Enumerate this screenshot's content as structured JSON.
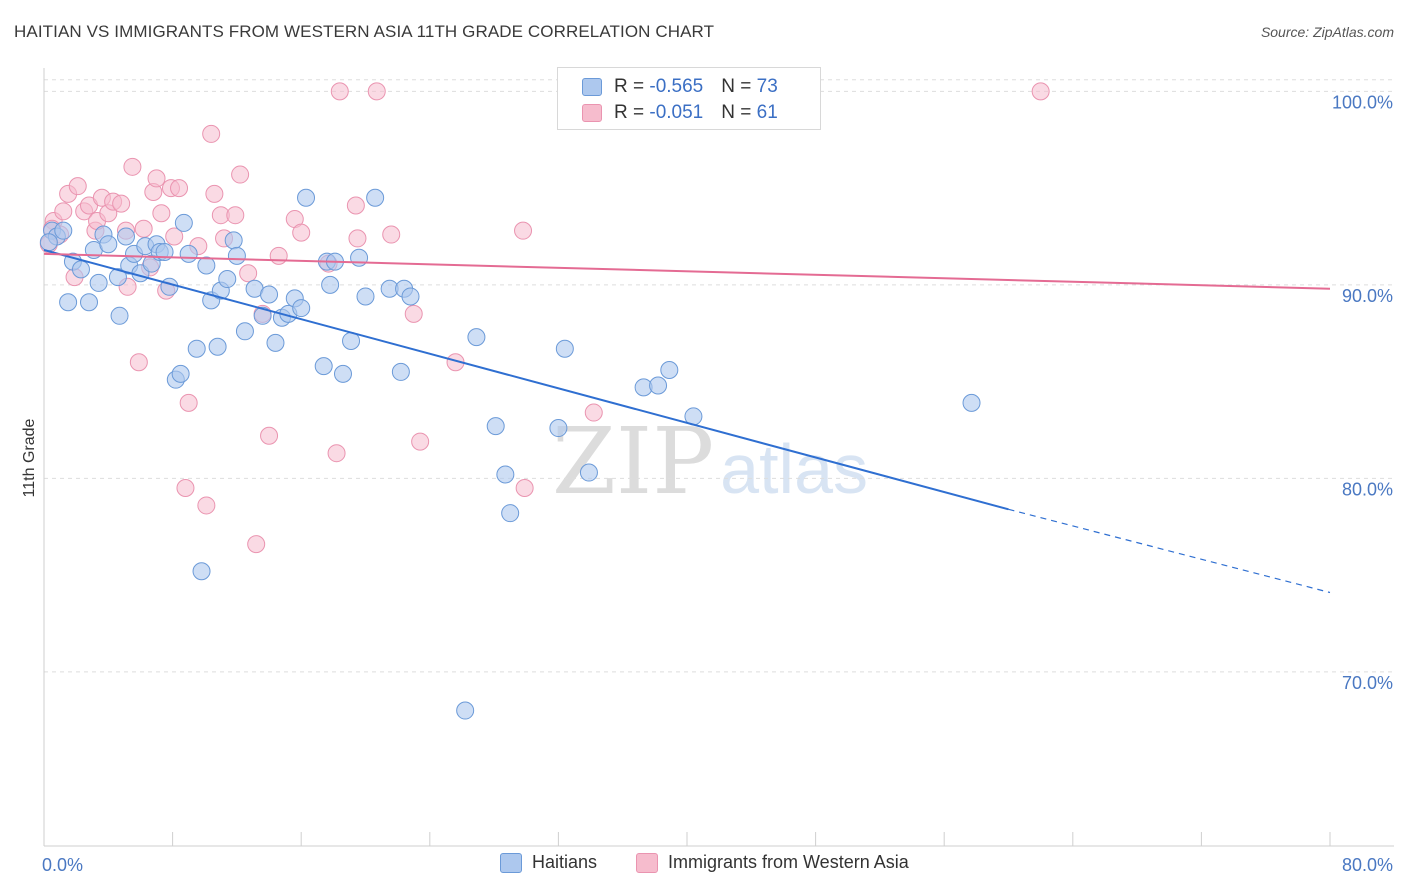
{
  "title": "HAITIAN VS IMMIGRANTS FROM WESTERN ASIA 11TH GRADE CORRELATION CHART",
  "source": "Source: ZipAtlas.com",
  "watermark": {
    "zip": "ZIP",
    "atlas": "atlas"
  },
  "legend": {
    "series1": {
      "r_label": "R = ",
      "r_value": "-0.565",
      "n_label": "N = ",
      "n_value": "73"
    },
    "series2": {
      "r_label": "R = ",
      "r_value": "-0.051",
      "n_label": "N = ",
      "n_value": "61"
    }
  },
  "colors": {
    "blue_fill": "#adc8ee",
    "blue_stroke": "#6b9ad8",
    "blue_line": "#2f6fd1",
    "pink_fill": "#f6bccd",
    "pink_stroke": "#ea94b0",
    "pink_line": "#e46b93",
    "grid": "#dddddd",
    "tick_text": "#4a78c2"
  },
  "chart_data": {
    "type": "scatter",
    "title": "HAITIAN VS IMMIGRANTS FROM WESTERN ASIA 11TH GRADE CORRELATION CHART",
    "xlabel": "",
    "ylabel": "11th Grade",
    "xlim": [
      0,
      80
    ],
    "ylim": [
      61,
      101
    ],
    "x_tick_labels": [
      "0.0%",
      "80.0%"
    ],
    "y_ticks": [
      70,
      80,
      90,
      100
    ],
    "y_tick_labels": [
      "70.0%",
      "80.0%",
      "90.0%",
      "100.0%"
    ],
    "legend_position": "bottom-center",
    "series": [
      {
        "name": "Haitians",
        "r": -0.565,
        "n": 73,
        "trend": {
          "x0": 0,
          "y0": 91.8,
          "x1": 60,
          "y1": 78.4,
          "dashed_to_x": 80,
          "dashed_to_y": 74.1
        },
        "points": [
          [
            0.5,
            92.8
          ],
          [
            0.8,
            92.5
          ],
          [
            1.2,
            92.8
          ],
          [
            1.5,
            89.1
          ],
          [
            1.8,
            91.2
          ],
          [
            2.3,
            90.8
          ],
          [
            2.8,
            89.1
          ],
          [
            3.1,
            91.8
          ],
          [
            3.4,
            90.1
          ],
          [
            3.7,
            92.6
          ],
          [
            4.0,
            92.1
          ],
          [
            4.6,
            90.4
          ],
          [
            4.7,
            88.4
          ],
          [
            5.1,
            92.5
          ],
          [
            5.3,
            91.0
          ],
          [
            5.6,
            91.6
          ],
          [
            6.0,
            90.6
          ],
          [
            6.3,
            92.0
          ],
          [
            6.7,
            91.1
          ],
          [
            7.0,
            92.1
          ],
          [
            7.2,
            91.7
          ],
          [
            7.5,
            91.7
          ],
          [
            7.8,
            89.9
          ],
          [
            8.2,
            85.1
          ],
          [
            8.5,
            85.4
          ],
          [
            8.7,
            93.2
          ],
          [
            9.0,
            91.6
          ],
          [
            9.5,
            86.7
          ],
          [
            9.8,
            75.2
          ],
          [
            10.1,
            91.0
          ],
          [
            10.4,
            89.2
          ],
          [
            10.8,
            86.8
          ],
          [
            11.0,
            89.7
          ],
          [
            11.4,
            90.3
          ],
          [
            11.8,
            92.3
          ],
          [
            12.0,
            91.5
          ],
          [
            12.5,
            87.6
          ],
          [
            13.1,
            89.8
          ],
          [
            13.6,
            88.4
          ],
          [
            14.0,
            89.5
          ],
          [
            14.4,
            87.0
          ],
          [
            14.8,
            88.3
          ],
          [
            15.2,
            88.5
          ],
          [
            15.6,
            89.3
          ],
          [
            16.0,
            88.8
          ],
          [
            16.3,
            94.5
          ],
          [
            17.4,
            85.8
          ],
          [
            17.6,
            91.2
          ],
          [
            17.8,
            90.0
          ],
          [
            18.1,
            91.2
          ],
          [
            18.6,
            85.4
          ],
          [
            19.1,
            87.1
          ],
          [
            19.6,
            91.4
          ],
          [
            20.0,
            89.4
          ],
          [
            20.6,
            94.5
          ],
          [
            21.5,
            89.8
          ],
          [
            22.2,
            85.5
          ],
          [
            22.4,
            89.8
          ],
          [
            22.8,
            89.4
          ],
          [
            26.2,
            68.0
          ],
          [
            26.9,
            87.3
          ],
          [
            28.1,
            82.7
          ],
          [
            28.7,
            80.2
          ],
          [
            29.0,
            78.2
          ],
          [
            32.0,
            82.6
          ],
          [
            32.4,
            86.7
          ],
          [
            33.9,
            80.3
          ],
          [
            37.3,
            84.7
          ],
          [
            38.2,
            84.8
          ],
          [
            38.9,
            85.6
          ],
          [
            40.4,
            83.2
          ],
          [
            57.7,
            83.9
          ],
          [
            0.3,
            92.2
          ]
        ]
      },
      {
        "name": "Immigrants from Western Asia",
        "r": -0.051,
        "n": 61,
        "trend": {
          "x0": 0,
          "y0": 91.6,
          "x1": 80,
          "y1": 89.8
        },
        "points": [
          [
            0.3,
            92.1
          ],
          [
            0.6,
            93.3
          ],
          [
            1.0,
            92.6
          ],
          [
            1.2,
            93.8
          ],
          [
            1.5,
            94.7
          ],
          [
            1.9,
            90.4
          ],
          [
            2.1,
            95.1
          ],
          [
            2.5,
            93.8
          ],
          [
            2.8,
            94.1
          ],
          [
            3.2,
            92.8
          ],
          [
            3.3,
            93.3
          ],
          [
            3.6,
            94.5
          ],
          [
            4.0,
            93.7
          ],
          [
            4.3,
            94.3
          ],
          [
            4.8,
            94.2
          ],
          [
            5.1,
            92.8
          ],
          [
            5.2,
            89.9
          ],
          [
            5.5,
            96.1
          ],
          [
            5.9,
            86.0
          ],
          [
            6.2,
            92.9
          ],
          [
            6.6,
            90.9
          ],
          [
            6.8,
            94.8
          ],
          [
            7.0,
            95.5
          ],
          [
            7.3,
            93.7
          ],
          [
            7.6,
            89.7
          ],
          [
            7.9,
            95.0
          ],
          [
            8.1,
            92.5
          ],
          [
            8.4,
            95.0
          ],
          [
            8.8,
            79.5
          ],
          [
            9.0,
            83.9
          ],
          [
            9.6,
            92.0
          ],
          [
            10.1,
            78.6
          ],
          [
            10.4,
            97.8
          ],
          [
            10.6,
            94.7
          ],
          [
            11.0,
            93.6
          ],
          [
            11.2,
            92.4
          ],
          [
            11.9,
            93.6
          ],
          [
            12.2,
            95.7
          ],
          [
            12.7,
            90.6
          ],
          [
            13.2,
            76.6
          ],
          [
            13.6,
            88.5
          ],
          [
            14.0,
            82.2
          ],
          [
            14.6,
            91.5
          ],
          [
            15.6,
            93.4
          ],
          [
            16.0,
            92.7
          ],
          [
            17.7,
            91.1
          ],
          [
            18.2,
            81.3
          ],
          [
            18.4,
            100.0
          ],
          [
            19.4,
            94.1
          ],
          [
            19.5,
            92.4
          ],
          [
            20.7,
            100.0
          ],
          [
            21.6,
            92.6
          ],
          [
            23.0,
            88.5
          ],
          [
            23.4,
            81.9
          ],
          [
            25.6,
            86.0
          ],
          [
            29.8,
            92.8
          ],
          [
            29.9,
            79.5
          ],
          [
            34.2,
            83.4
          ],
          [
            42.2,
            100.0
          ],
          [
            62.0,
            100.0
          ],
          [
            0.5,
            92.9
          ]
        ]
      }
    ]
  }
}
